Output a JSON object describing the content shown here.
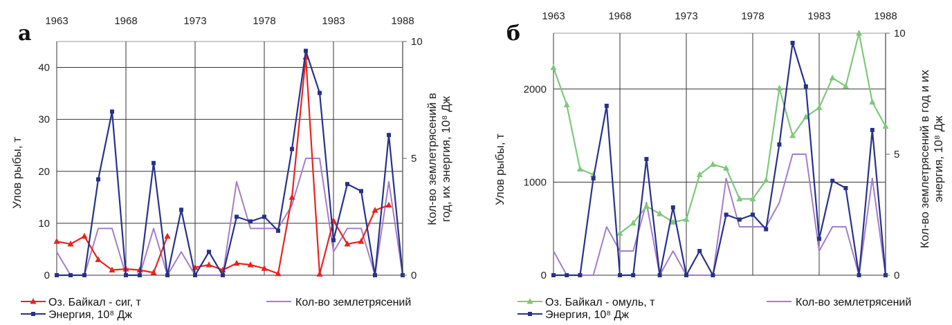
{
  "chart_data": [
    {
      "panel": "а",
      "type": "line",
      "x_top_ticks": [
        "1963",
        "1968",
        "1973",
        "1978",
        "1983",
        "1988"
      ],
      "ylabel": "Улов рыбы, т",
      "y2label": "Кол-во землетрясений в год, их энергия, 10⁸ Дж",
      "ylim": [
        0,
        45
      ],
      "y2lim": [
        0,
        10
      ],
      "yticks": [
        "0",
        "10",
        "20",
        "30",
        "40"
      ],
      "y2ticks": [
        "0",
        "5",
        "10"
      ],
      "x": [
        1963,
        1964,
        1965,
        1966,
        1967,
        1968,
        1969,
        1970,
        1971,
        1972,
        1973,
        1974,
        1975,
        1976,
        1977,
        1978,
        1979,
        1980,
        1981,
        1982,
        1983,
        1984,
        1985,
        1986,
        1987,
        1988
      ],
      "series": [
        {
          "name": "Оз. Байкал - сиг, т",
          "axis": "left",
          "color": "#e8231e",
          "marker": "triangle",
          "values": [
            6.5,
            6,
            7.5,
            3,
            1,
            1.2,
            1,
            0.5,
            7.5,
            null,
            1.5,
            2,
            1,
            2.3,
            2,
            1.3,
            0.3,
            15,
            42,
            0.2,
            10.5,
            6,
            6.5,
            12.5,
            13.5,
            null
          ]
        },
        {
          "name": "Кол-во землетрясений",
          "axis": "right",
          "color": "#a57cc8",
          "marker": "none",
          "values": [
            1,
            0,
            0,
            2,
            2,
            0,
            0,
            2,
            0,
            1,
            0,
            0,
            0,
            4,
            2,
            2,
            2,
            3,
            5,
            5,
            1,
            2,
            2,
            0,
            4,
            0
          ]
        },
        {
          "name": "Энергия, 10⁸ Дж",
          "axis": "right",
          "color": "#27318a",
          "marker": "square",
          "values": [
            0,
            0,
            0,
            4.1,
            7,
            0,
            0,
            4.8,
            0,
            2.8,
            0,
            1,
            0,
            2.5,
            2.3,
            2.5,
            1.9,
            5.4,
            9.6,
            7.8,
            1.5,
            3.9,
            3.6,
            0,
            6,
            0
          ]
        }
      ]
    },
    {
      "panel": "б",
      "type": "line",
      "x_top_ticks": [
        "1963",
        "1968",
        "1973",
        "1978",
        "1983",
        "1988"
      ],
      "ylabel": "Улов рыбы, т",
      "y2label": "Кол-во землетрясений в год и их энергия, 10⁸ Дж",
      "ylim": [
        0,
        2600
      ],
      "y2lim": [
        0,
        10
      ],
      "yticks": [
        "0",
        "1000",
        "2000"
      ],
      "y2ticks": [
        "0",
        "5",
        "10"
      ],
      "x": [
        1963,
        1964,
        1965,
        1966,
        1967,
        1968,
        1969,
        1970,
        1971,
        1972,
        1973,
        1974,
        1975,
        1976,
        1977,
        1978,
        1979,
        1980,
        1981,
        1982,
        1983,
        1984,
        1985,
        1986,
        1987,
        1988
      ],
      "series": [
        {
          "name": "Оз. Байкал - омуль, т",
          "axis": "left",
          "color": "#7ec87a",
          "marker": "triangle",
          "values": [
            2230,
            1830,
            1140,
            1080,
            null,
            450,
            560,
            740,
            660,
            570,
            600,
            1080,
            1190,
            1150,
            820,
            820,
            1020,
            2010,
            1500,
            1700,
            1800,
            2120,
            2030,
            2600,
            1860,
            1600
          ]
        },
        {
          "name": "Кол-во землетрясений",
          "axis": "right",
          "color": "#a57cc8",
          "marker": "none",
          "values": [
            1,
            0,
            0,
            0,
            2,
            1,
            1,
            3,
            0,
            1,
            0,
            0,
            0,
            4,
            2,
            2,
            2,
            3,
            5,
            5,
            1,
            2,
            2,
            0,
            4,
            0
          ]
        },
        {
          "name": "Энергия, 10⁸ Дж",
          "axis": "right",
          "color": "#27318a",
          "marker": "square",
          "values": [
            0,
            0,
            0,
            4,
            7,
            0,
            0,
            4.8,
            0,
            2.8,
            0,
            1,
            0,
            2.5,
            2.3,
            2.5,
            1.9,
            5.4,
            9.6,
            7.8,
            1.5,
            3.9,
            3.6,
            0,
            6,
            0
          ]
        }
      ]
    }
  ]
}
